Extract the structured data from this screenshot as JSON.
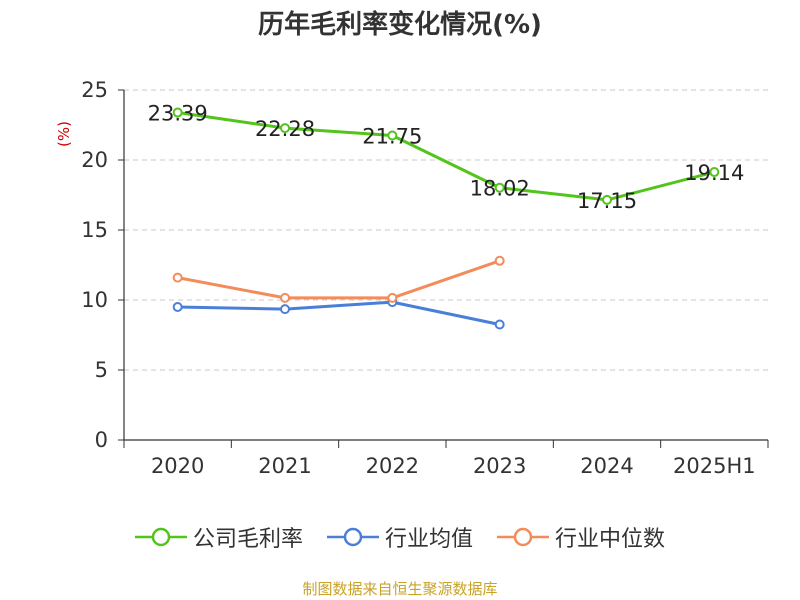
{
  "title": "历年毛利率变化情况(%)",
  "unit_label": "(%)",
  "footer": "制图数据来自恒生聚源数据库",
  "chart_data": {
    "type": "line",
    "title": "历年毛利率变化情况(%)",
    "categories": [
      "2020",
      "2021",
      "2022",
      "2023",
      "2024",
      "2025H1"
    ],
    "ylabel": "(%)",
    "ylim": [
      0,
      25
    ],
    "yticks": [
      0,
      5,
      10,
      15,
      20,
      25
    ],
    "grid": true,
    "legend_position": "bottom",
    "series": [
      {
        "name": "公司毛利率",
        "color": "#52c41a",
        "values": [
          23.39,
          22.28,
          21.75,
          18.02,
          17.15,
          19.14
        ],
        "data_labels": [
          "23.39",
          "22.28",
          "21.75",
          "18.02",
          "17.15",
          "19.14"
        ]
      },
      {
        "name": "行业均值",
        "color": "#4a7fd9",
        "values": [
          9.5,
          9.35,
          9.85,
          8.25,
          null,
          null
        ]
      },
      {
        "name": "行业中位数",
        "color": "#f28c5a",
        "values": [
          11.6,
          10.15,
          10.15,
          12.8,
          null,
          null
        ]
      }
    ]
  }
}
